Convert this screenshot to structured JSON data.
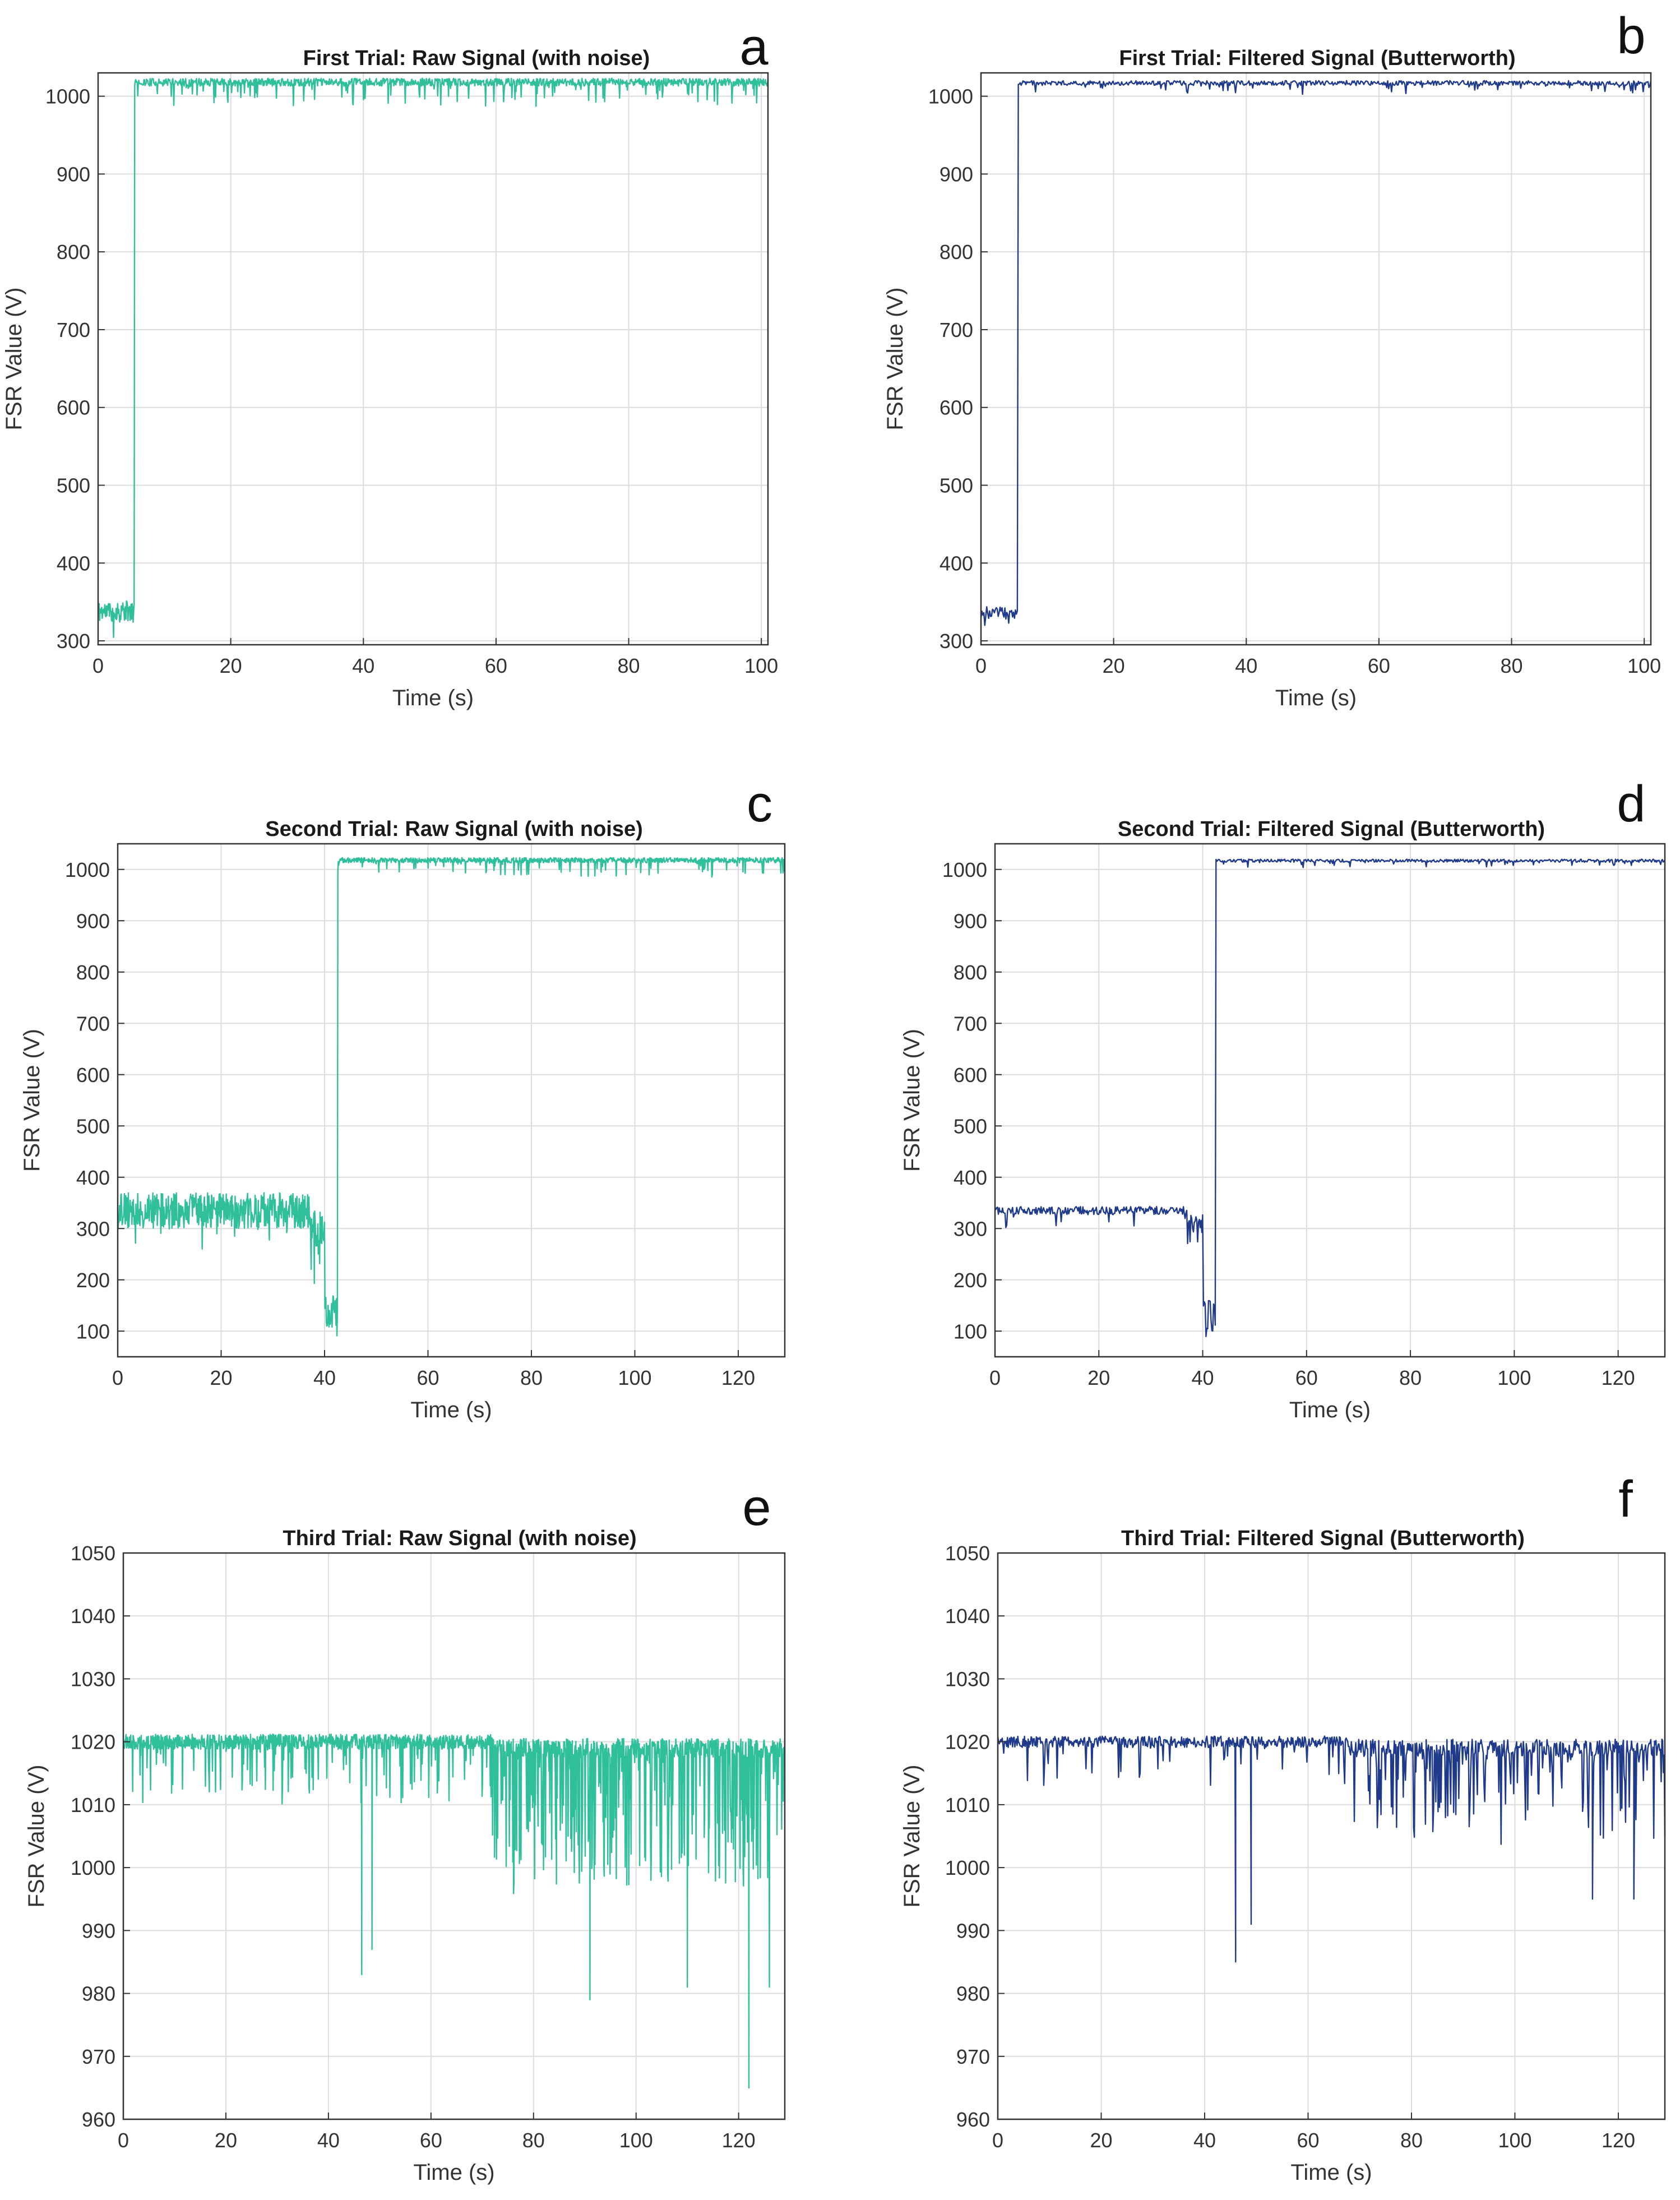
{
  "colors": {
    "raw": "#2fbf9a",
    "filtered": "#1f3a8a",
    "grid": "#dcdcdc",
    "axis": "#333333"
  },
  "chart_data": [
    {
      "panel": "a",
      "type": "line",
      "title": "First Trial: Raw Signal (with noise)",
      "xlabel": "Time (s)",
      "ylabel": "FSR Value (V)",
      "xlim": [
        0,
        101
      ],
      "ylim": [
        295,
        1030
      ],
      "xticks": [
        0,
        20,
        40,
        60,
        80,
        100
      ],
      "yticks": [
        300,
        400,
        500,
        600,
        700,
        800,
        900,
        1000
      ],
      "grid": true,
      "series_color": "raw",
      "signal": {
        "seed": 11,
        "duration": 101,
        "points": 1300,
        "segments": [
          {
            "t0": 0,
            "t1": 5.5,
            "base": 338,
            "noise": 14,
            "spikeProb": 0.05,
            "spikeDepth": 40
          },
          {
            "t0": 5.5,
            "t1": 101,
            "base": 1018,
            "noise": 5,
            "spikeProb": 0.09,
            "spikeDepth": 28
          }
        ]
      }
    },
    {
      "panel": "b",
      "type": "line",
      "title": "First Trial: Filtered Signal (Butterworth)",
      "xlabel": "Time (s)",
      "ylabel": "FSR Value (V)",
      "xlim": [
        0,
        101
      ],
      "ylim": [
        295,
        1030
      ],
      "xticks": [
        0,
        20,
        40,
        60,
        80,
        100
      ],
      "yticks": [
        300,
        400,
        500,
        600,
        700,
        800,
        900,
        1000
      ],
      "grid": true,
      "series_color": "filtered",
      "signal": {
        "seed": 23,
        "duration": 101,
        "points": 700,
        "segments": [
          {
            "t0": 0,
            "t1": 5.5,
            "base": 336,
            "noise": 8,
            "spikeProb": 0.06,
            "spikeDepth": 30
          },
          {
            "t0": 5.5,
            "t1": 101,
            "base": 1017,
            "noise": 3,
            "spikeProb": 0.06,
            "spikeDepth": 12
          }
        ]
      }
    },
    {
      "panel": "c",
      "type": "line",
      "title": "Second Trial: Raw Signal (with noise)",
      "xlabel": "Time (s)",
      "ylabel": "FSR Value (V)",
      "xlim": [
        0,
        129
      ],
      "ylim": [
        50,
        1050
      ],
      "xticks": [
        0,
        20,
        40,
        60,
        80,
        100,
        120
      ],
      "yticks": [
        100,
        200,
        300,
        400,
        500,
        600,
        700,
        800,
        900,
        1000
      ],
      "grid": true,
      "series_color": "raw",
      "signal": {
        "seed": 37,
        "duration": 129,
        "points": 1500,
        "segments": [
          {
            "t0": 0,
            "t1": 37,
            "base": 335,
            "noise": 35,
            "spikeProb": 0.04,
            "spikeDepth": 60
          },
          {
            "t0": 37,
            "t1": 40,
            "base": 300,
            "noise": 35,
            "spikeProb": 0.3,
            "spikeDepth": 80
          },
          {
            "t0": 40,
            "t1": 42.5,
            "base": 130,
            "noise": 40,
            "spikeProb": 0.0,
            "spikeDepth": 0
          },
          {
            "t0": 42.5,
            "t1": 129,
            "base": 1018,
            "noise": 5,
            "spikeProb": 0.09,
            "spikeDepth": 30
          }
        ]
      }
    },
    {
      "panel": "d",
      "type": "line",
      "title": "Second Trial: Filtered Signal (Butterworth)",
      "xlabel": "Time (s)",
      "ylabel": "FSR Value (V)",
      "xlim": [
        0,
        129
      ],
      "ylim": [
        50,
        1050
      ],
      "xticks": [
        0,
        20,
        40,
        60,
        80,
        100,
        120
      ],
      "yticks": [
        100,
        200,
        300,
        400,
        500,
        600,
        700,
        800,
        900,
        1000
      ],
      "grid": true,
      "series_color": "filtered",
      "signal": {
        "seed": 41,
        "duration": 129,
        "points": 800,
        "segments": [
          {
            "t0": 0,
            "t1": 37,
            "base": 335,
            "noise": 8,
            "spikeProb": 0.05,
            "spikeDepth": 35
          },
          {
            "t0": 37,
            "t1": 40,
            "base": 320,
            "noise": 10,
            "spikeProb": 0.3,
            "spikeDepth": 60
          },
          {
            "t0": 40,
            "t1": 42.5,
            "base": 120,
            "noise": 40,
            "spikeProb": 0.0,
            "spikeDepth": 0
          },
          {
            "t0": 42.5,
            "t1": 129,
            "base": 1017,
            "noise": 3,
            "spikeProb": 0.06,
            "spikeDepth": 12
          }
        ]
      }
    },
    {
      "panel": "e",
      "type": "line",
      "title": "Third Trial: Raw Signal (with noise)",
      "xlabel": "Time (s)",
      "ylabel": "FSR Value (V)",
      "xlim": [
        0,
        129
      ],
      "ylim": [
        960,
        1050
      ],
      "xticks": [
        0,
        20,
        40,
        60,
        80,
        100,
        120
      ],
      "yticks": [
        960,
        970,
        980,
        990,
        1000,
        1010,
        1020,
        1030,
        1040,
        1050
      ],
      "grid": true,
      "series_color": "raw",
      "signal": {
        "seed": 53,
        "duration": 129,
        "points": 1700,
        "segments": [
          {
            "t0": 0,
            "t1": 72,
            "base": 1020,
            "noise": 1.2,
            "spikeProb": 0.12,
            "spikeDepth": 9
          },
          {
            "t0": 72,
            "t1": 129,
            "base": 1019,
            "noise": 1.5,
            "spikeProb": 0.35,
            "spikeDepth": 22
          }
        ],
        "events": [
          {
            "t": 46.5,
            "v": 983
          },
          {
            "t": 48.5,
            "v": 987
          },
          {
            "t": 91,
            "v": 979
          },
          {
            "t": 110,
            "v": 981
          },
          {
            "t": 122,
            "v": 965
          },
          {
            "t": 126,
            "v": 981
          }
        ]
      }
    },
    {
      "panel": "f",
      "type": "line",
      "title": "Third Trial: Filtered Signal (Butterworth)",
      "xlabel": "Time (s)",
      "ylabel": "FSR Value (V)",
      "xlim": [
        0,
        129
      ],
      "ylim": [
        960,
        1050
      ],
      "xticks": [
        0,
        20,
        40,
        60,
        80,
        100,
        120
      ],
      "yticks": [
        960,
        970,
        980,
        990,
        1000,
        1010,
        1020,
        1030,
        1040,
        1050
      ],
      "grid": true,
      "series_color": "filtered",
      "signal": {
        "seed": 67,
        "duration": 129,
        "points": 900,
        "segments": [
          {
            "t0": 0,
            "t1": 68,
            "base": 1020,
            "noise": 0.9,
            "spikeProb": 0.08,
            "spikeDepth": 7
          },
          {
            "t0": 68,
            "t1": 129,
            "base": 1019,
            "noise": 1.4,
            "spikeProb": 0.28,
            "spikeDepth": 14
          }
        ],
        "events": [
          {
            "t": 46,
            "v": 985
          },
          {
            "t": 49,
            "v": 991
          },
          {
            "t": 115,
            "v": 995
          },
          {
            "t": 123,
            "v": 995
          }
        ]
      }
    }
  ]
}
